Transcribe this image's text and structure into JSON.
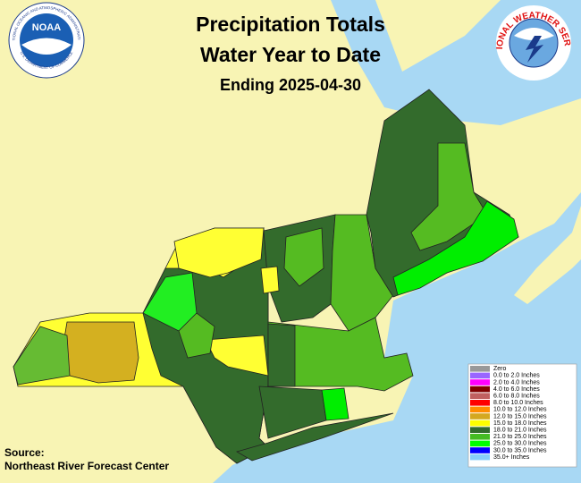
{
  "header": {
    "title_lines": [
      "Precipitation Totals",
      "Water Year to Date",
      "Ending 2025-04-30"
    ]
  },
  "logos": {
    "noaa": {
      "name": "NOAA",
      "ring_top": "NATIONAL OCEANIC AND ATMOSPHERIC ADMINISTRATION",
      "ring_bottom": "U.S. DEPARTMENT OF COMMERCE"
    },
    "nws": {
      "ring": "NATIONAL WEATHER SERVICE"
    }
  },
  "legend": [
    {
      "label": "Zero",
      "color": "#999999"
    },
    {
      "label": "0.0 to 2.0 Inches",
      "color": "#9966ff"
    },
    {
      "label": "2.0 to 4.0 Inches",
      "color": "#ff00ff"
    },
    {
      "label": "4.0 to 6.0 Inches",
      "color": "#800000"
    },
    {
      "label": "6.0 to 8.0 Inches",
      "color": "#c06060"
    },
    {
      "label": "8.0 to 10.0 Inches",
      "color": "#ff0000"
    },
    {
      "label": "10.0 to 12.0 Inches",
      "color": "#ff8c00"
    },
    {
      "label": "12.0 to 15.0 Inches",
      "color": "#d4a820"
    },
    {
      "label": "15.0 to 18.0 Inches",
      "color": "#ffff00"
    },
    {
      "label": "18.0 to 21.0 Inches",
      "color": "#336b2c"
    },
    {
      "label": "21.0 to 25.0 Inches",
      "color": "#44bb22"
    },
    {
      "label": "25.0 to 30.0 Inches",
      "color": "#00ff00"
    },
    {
      "label": "30.0 to 35.0 Inches",
      "color": "#0000ff"
    },
    {
      "label": "35.0+ Inches",
      "color": "#87cefa"
    }
  ],
  "source": [
    "Source:",
    "Northeast River Forecast Center"
  ]
}
